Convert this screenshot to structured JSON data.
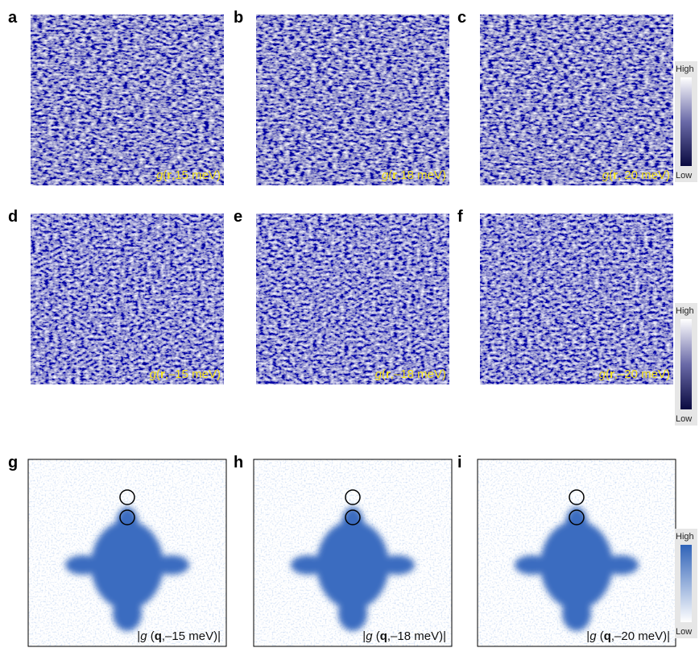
{
  "rows": [
    {
      "panels": [
        {
          "label": "a",
          "caption": [
            "g",
            "(",
            "r",
            ",15 meV)"
          ]
        },
        {
          "label": "b",
          "caption": [
            "g",
            "(",
            "r",
            ",18 meV)"
          ]
        },
        {
          "label": "c",
          "caption": [
            "g",
            "(",
            "r",
            ", 20 meV)"
          ]
        }
      ],
      "colorbar": {
        "high": "High",
        "low": "Low"
      }
    },
    {
      "panels": [
        {
          "label": "d",
          "caption": [
            "g",
            "(",
            "r",
            ",–15 meV)"
          ]
        },
        {
          "label": "e",
          "caption": [
            "g",
            "(",
            "r",
            ",–18 meV)"
          ]
        },
        {
          "label": "f",
          "caption": [
            "g",
            "(",
            "r",
            ",–20 meV)"
          ]
        }
      ],
      "colorbar": {
        "high": "High",
        "low": "Low"
      }
    },
    {
      "panels": [
        {
          "label": "g",
          "caption": [
            "|",
            "g",
            " (",
            "q",
            ",–15 meV)|"
          ]
        },
        {
          "label": "h",
          "caption": [
            "|",
            "g",
            " (",
            "q",
            ",–18 meV)|"
          ]
        },
        {
          "label": "i",
          "caption": [
            "|",
            "g",
            " (",
            "q",
            ",–20 meV)|"
          ]
        }
      ],
      "colorbar": {
        "high": "High",
        "low": "Low"
      }
    }
  ]
}
